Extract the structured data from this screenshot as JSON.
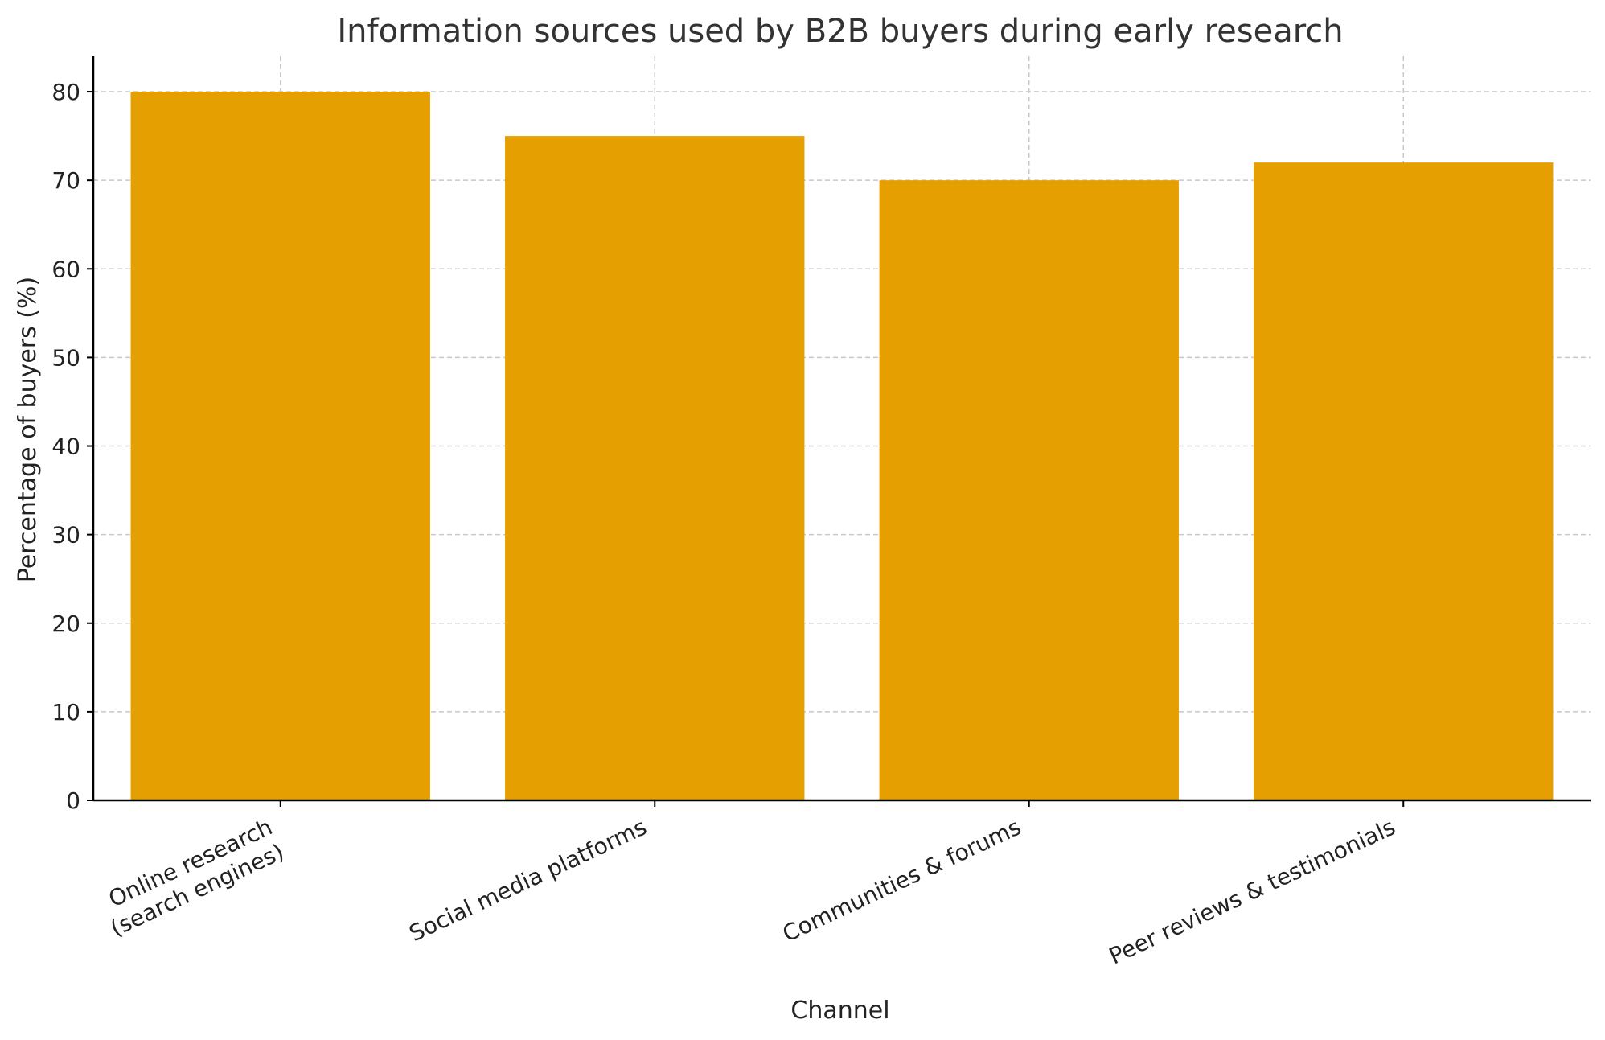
{
  "chart_data": {
    "type": "bar",
    "title": "Information sources used by B2B buyers during early research",
    "xlabel": "Channel",
    "ylabel": "Percentage of buyers (%)",
    "categories": [
      "Online research\n(search engines)",
      "Social media platforms",
      "Communities & forums",
      "Peer reviews & testimonials"
    ],
    "values": [
      80,
      75,
      70,
      72
    ],
    "ylim": [
      0,
      84
    ],
    "yticks": [
      0,
      10,
      20,
      30,
      40,
      50,
      60,
      70,
      80
    ],
    "grid": true,
    "legend": false,
    "bar_color": "#E69F00",
    "grid_color": "#c8c8c8",
    "text_color": "#333333"
  }
}
